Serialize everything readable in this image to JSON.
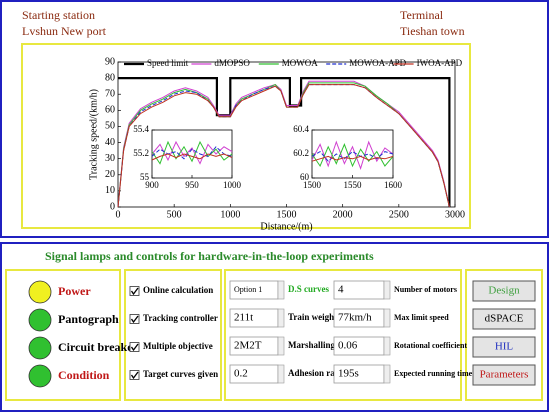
{
  "header": {
    "start_label": "Starting station",
    "start_name": "Lvshun New port",
    "end_label": "Terminal",
    "end_name": "Tieshan town"
  },
  "chart_data": [
    {
      "type": "line",
      "xlabel": "Distance/(m)",
      "ylabel": "Tracking speed/(km/h)",
      "legend": "top",
      "x": [
        0,
        50,
        100,
        200,
        300,
        400,
        500,
        600,
        700,
        800,
        850,
        900,
        1000,
        1050,
        1100,
        1200,
        1300,
        1400,
        1450,
        1500,
        1600,
        1650,
        1700,
        1800,
        1900,
        2000,
        2100,
        2200,
        2300,
        2400,
        2500,
        2600,
        2700,
        2800,
        2850,
        2900,
        2950
      ],
      "xlim": [
        0,
        3000
      ],
      "xticks": [
        0,
        500,
        1000,
        1500,
        2000,
        2500,
        3000
      ],
      "ylim": [
        0,
        90
      ],
      "yticks": [
        0,
        10,
        20,
        30,
        40,
        50,
        60,
        70,
        80,
        90
      ],
      "series": [
        {
          "name": "Speed limit",
          "color": "#000000",
          "x": [
            0,
            880,
            880,
            1000,
            1000,
            1530,
            1530,
            1630,
            1630,
            2950,
            2950
          ],
          "values": [
            80,
            80,
            57,
            57,
            80,
            80,
            63,
            63,
            80,
            80,
            0
          ]
        },
        {
          "name": "dMOPSO",
          "color": "#d040d0",
          "values": [
            0,
            37,
            52,
            61,
            65,
            68,
            72,
            74,
            72,
            68,
            63,
            57,
            57,
            64,
            68,
            71,
            74,
            76,
            73,
            63,
            63,
            72,
            78,
            78,
            78,
            78,
            78,
            75,
            69,
            64,
            59,
            51,
            43,
            35,
            29,
            16,
            0
          ]
        },
        {
          "name": "MOWOA",
          "color": "#30c030",
          "values": [
            0,
            36,
            51,
            60,
            64,
            67,
            71,
            73,
            71,
            67,
            62,
            56,
            56,
            63,
            67,
            70,
            73,
            76,
            72,
            62,
            62,
            71,
            77,
            77,
            77,
            77,
            77,
            75,
            69,
            64,
            58,
            50,
            42,
            34,
            28,
            15,
            0
          ]
        },
        {
          "name": "MOWOA-APD",
          "color": "#2030d0",
          "dashed": true,
          "values": [
            0,
            35,
            50,
            59,
            63,
            66,
            70,
            72,
            71,
            66,
            62,
            56,
            56,
            63,
            66,
            70,
            73,
            75,
            72,
            62,
            62,
            70,
            76,
            76,
            76,
            76,
            76,
            74,
            68,
            63,
            58,
            50,
            42,
            34,
            28,
            15,
            0
          ]
        },
        {
          "name": "IWOA-APD",
          "color": "#c03020",
          "values": [
            0,
            35,
            50,
            58,
            62,
            65,
            69,
            71,
            70,
            66,
            62,
            56,
            56,
            62,
            66,
            69,
            72,
            75,
            72,
            62,
            62,
            70,
            76,
            76,
            76,
            76,
            76,
            74,
            68,
            63,
            58,
            50,
            42,
            34,
            28,
            15,
            0
          ]
        }
      ]
    },
    {
      "type": "line",
      "x": [
        900,
        910,
        920,
        930,
        940,
        950,
        960,
        970,
        980,
        990,
        1000
      ],
      "xlim": [
        900,
        1000
      ],
      "xticks": [
        900,
        950,
        1000
      ],
      "ylim": [
        55,
        55.4
      ],
      "yticks": [
        55,
        55.2,
        55.4
      ],
      "series": [
        {
          "color": "#d040d0",
          "values": [
            55.2,
            55.28,
            55.15,
            55.3,
            55.18,
            55.25,
            55.12,
            55.28,
            55.2,
            55.26,
            55.22
          ]
        },
        {
          "color": "#30c030",
          "values": [
            55.22,
            55.12,
            55.3,
            55.16,
            55.26,
            55.14,
            55.3,
            55.18,
            55.24,
            55.15,
            55.2
          ]
        },
        {
          "color": "#2030d0",
          "dashed": true,
          "values": [
            55.18,
            55.24,
            55.2,
            55.22,
            55.16,
            55.24,
            55.2,
            55.18,
            55.26,
            55.2,
            55.18
          ]
        },
        {
          "color": "#c03020",
          "values": [
            55.15,
            55.18,
            55.2,
            55.17,
            55.2,
            55.18,
            55.16,
            55.2,
            55.18,
            55.2,
            55.17
          ]
        }
      ]
    },
    {
      "type": "line",
      "x": [
        1500,
        1510,
        1520,
        1530,
        1540,
        1550,
        1560,
        1570,
        1580,
        1590,
        1600
      ],
      "xlim": [
        1500,
        1600
      ],
      "xticks": [
        1500,
        1550,
        1600
      ],
      "ylim": [
        60,
        60.4
      ],
      "yticks": [
        60,
        60.2,
        60.4
      ],
      "series": [
        {
          "color": "#d040d0",
          "values": [
            60.15,
            60.28,
            60.1,
            60.3,
            60.12,
            60.26,
            60.08,
            60.3,
            60.14,
            60.25,
            60.2
          ]
        },
        {
          "color": "#30c030",
          "values": [
            60.2,
            60.1,
            60.26,
            60.12,
            60.28,
            60.1,
            60.24,
            60.14,
            60.22,
            60.1,
            60.18
          ]
        },
        {
          "color": "#2030d0",
          "dashed": true,
          "values": [
            60.18,
            60.22,
            60.14,
            60.2,
            60.16,
            60.22,
            60.18,
            60.2,
            60.16,
            60.22,
            60.2
          ]
        },
        {
          "color": "#c03020",
          "values": [
            60.14,
            60.16,
            60.18,
            60.15,
            60.17,
            60.16,
            60.18,
            60.15,
            60.17,
            60.16,
            60.18
          ]
        }
      ]
    }
  ],
  "controls": {
    "title": "Signal lamps and controls for hardware-in-the-loop experiments",
    "lamps": [
      {
        "label": "Power",
        "color": "#f0f020",
        "label_color": "#c01818"
      },
      {
        "label": "Pantograph",
        "color": "#30c030"
      },
      {
        "label": "Circuit breaker",
        "color": "#30c030"
      },
      {
        "label": "Condition",
        "color": "#30c030",
        "label_color": "#c01818"
      }
    ],
    "checkboxes": [
      {
        "label": "Online calculation",
        "checked": true
      },
      {
        "label": "Tracking controller",
        "checked": true
      },
      {
        "label": "Multiple objective",
        "checked": true
      },
      {
        "label": "Target curves given",
        "checked": true
      }
    ],
    "params": [
      {
        "value": "Option 1",
        "label": "D.S curves",
        "label_color": "#22aa22"
      },
      {
        "value": "4",
        "label": "Number of motors"
      },
      {
        "value": "211t",
        "label": "Train weight"
      },
      {
        "value": "77km/h",
        "label": "Max limit speed"
      },
      {
        "value": "2M2T",
        "label": "Marshalling"
      },
      {
        "value": "0.06",
        "label": "Rotational coefficient"
      },
      {
        "value": "0.2",
        "label": "Adhesion ratio"
      },
      {
        "value": "195s",
        "label": "Expected running time"
      }
    ],
    "buttons": [
      {
        "label": "Design",
        "color": "#40a040"
      },
      {
        "label": "dSPACE",
        "color": "#000000"
      },
      {
        "label": "HIL",
        "color": "#2030c0"
      },
      {
        "label": "Parameters",
        "color": "#c01818"
      }
    ]
  }
}
